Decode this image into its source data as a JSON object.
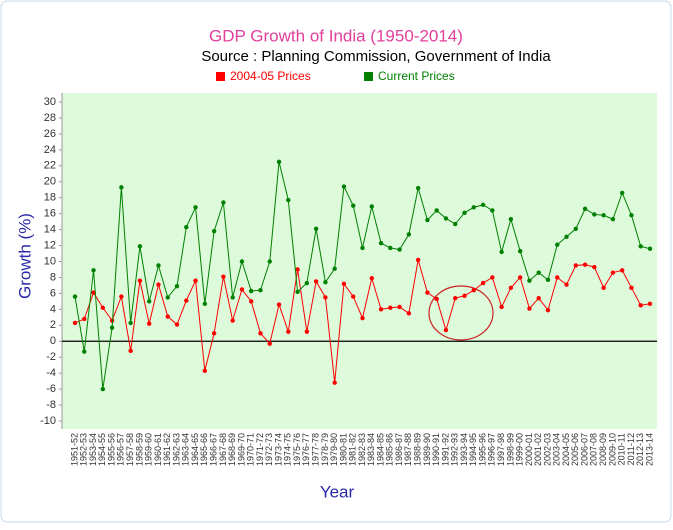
{
  "chart_data": {
    "type": "line",
    "title": "GDP Growth of India (1950-2014)",
    "subtitle": "Source : Planning Commission, Government of India",
    "x_label": "Year",
    "y_label": "Growth (%)",
    "categories": [
      "1951-52",
      "1952-53",
      "1953-54",
      "1954-55",
      "1955-56",
      "1956-57",
      "1957-58",
      "1958-59",
      "1959-60",
      "1960-61",
      "1961-62",
      "1962-63",
      "1963-64",
      "1964-65",
      "1965-66",
      "1966-67",
      "1967-68",
      "1968-69",
      "1969-70",
      "1970-71",
      "1971-72",
      "1972-73",
      "1973-74",
      "1974-75",
      "1975-76",
      "1976-77",
      "1977-78",
      "1978-79",
      "1979-80",
      "1980-81",
      "1981-82",
      "1982-83",
      "1983-84",
      "1984-85",
      "1985-86",
      "1986-87",
      "1987-88",
      "1988-89",
      "1989-90",
      "1990-91",
      "1991-92",
      "1992-93",
      "1993-94",
      "1994-95",
      "1995-96",
      "1996-97",
      "1997-98",
      "1998-99",
      "1999-00",
      "2000-01",
      "2001-02",
      "2002-03",
      "2003-04",
      "2004-05",
      "2005-06",
      "2006-07",
      "2007-08",
      "2008-09",
      "2009-10",
      "2010-11",
      "2011-12",
      "2012-13",
      "2013-14"
    ],
    "series": [
      {
        "name": "2004-05 Prices",
        "color": "#ff0000",
        "values": [
          2.3,
          2.8,
          6.1,
          4.2,
          2.6,
          5.6,
          -1.2,
          7.6,
          2.2,
          7.1,
          3.1,
          2.1,
          5.1,
          7.6,
          -3.7,
          1.0,
          8.1,
          2.6,
          6.5,
          5.0,
          1.0,
          -0.3,
          4.6,
          1.2,
          9.0,
          1.2,
          7.5,
          5.5,
          -5.2,
          7.2,
          5.6,
          2.9,
          7.9,
          4.0,
          4.2,
          4.3,
          3.5,
          10.2,
          6.1,
          5.3,
          1.4,
          5.4,
          5.7,
          6.4,
          7.3,
          8.0,
          4.3,
          6.7,
          8.0,
          4.1,
          5.4,
          3.9,
          8.0,
          7.1,
          9.5,
          9.6,
          9.3,
          6.7,
          8.6,
          8.9,
          6.7,
          4.5,
          4.7
        ]
      },
      {
        "name": "Current Prices",
        "color": "#008000",
        "values": [
          5.6,
          -1.3,
          8.9,
          -6.0,
          1.7,
          19.3,
          2.3,
          11.9,
          5.0,
          9.5,
          5.5,
          6.9,
          14.3,
          16.8,
          4.7,
          13.8,
          17.4,
          5.5,
          10.0,
          6.3,
          6.4,
          10.0,
          22.5,
          17.7,
          6.2,
          7.3,
          14.1,
          7.4,
          9.1,
          19.4,
          17.0,
          11.7,
          16.9,
          12.3,
          11.7,
          11.5,
          13.4,
          19.2,
          15.2,
          16.4,
          15.4,
          14.7,
          16.1,
          16.8,
          17.1,
          16.4,
          11.2,
          15.3,
          11.3,
          7.6,
          8.6,
          7.7,
          12.1,
          13.1,
          14.1,
          16.6,
          15.9,
          15.8,
          15.3,
          18.6,
          15.8,
          11.9,
          11.6
        ]
      }
    ],
    "ylim": [
      -10,
      30
    ],
    "yticks": [
      -10,
      -8,
      -6,
      -4,
      -2,
      0,
      2,
      4,
      6,
      8,
      10,
      12,
      14,
      16,
      18,
      20,
      22,
      24,
      26,
      28,
      30
    ]
  }
}
